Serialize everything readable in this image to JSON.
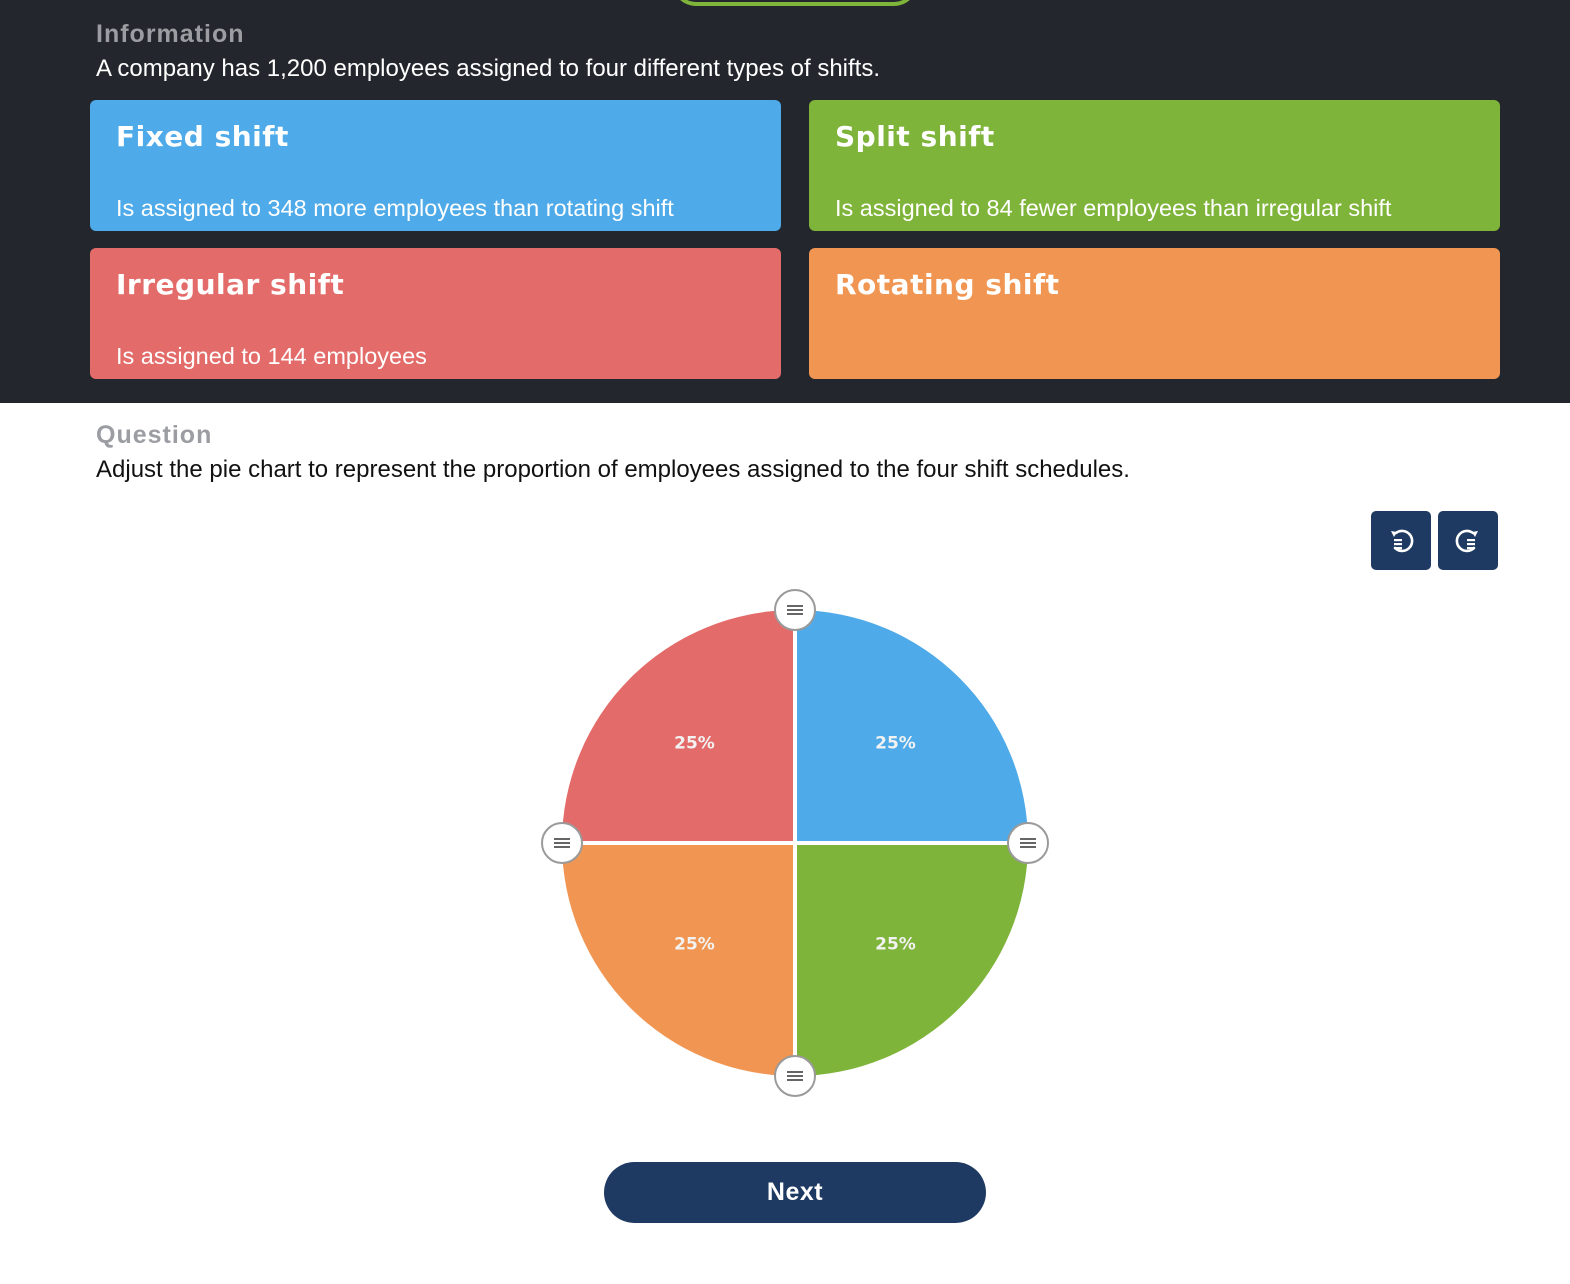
{
  "information": {
    "label": "Information",
    "text": "A company has 1,200 employees assigned to four different types of shifts."
  },
  "cards": [
    {
      "title": "Fixed shift",
      "description": "Is assigned to 348 more employees than rotating shift",
      "color": "#4eaae8"
    },
    {
      "title": "Split shift",
      "description": "Is assigned to 84 fewer employees than irregular shift",
      "color": "#7fb43a"
    },
    {
      "title": "Irregular shift",
      "description": "Is assigned to 144 employees",
      "color": "#e36c6a"
    },
    {
      "title": "Rotating shift",
      "description": "",
      "color": "#f19652"
    }
  ],
  "question": {
    "label": "Question",
    "text": "Adjust the pie chart to represent the proportion of employees assigned to the four shift schedules."
  },
  "toolbar": {
    "undo_icon": "undo-icon",
    "redo_icon": "redo-icon"
  },
  "chart_data": {
    "type": "pie",
    "categories": [
      "Fixed shift",
      "Split shift",
      "Rotating shift",
      "Irregular shift"
    ],
    "values": [
      25,
      25,
      25,
      25
    ],
    "labels": [
      "25%",
      "25%",
      "25%",
      "25%"
    ],
    "colors": [
      "#4eaae8",
      "#7fb43a",
      "#f19652",
      "#e36c6a"
    ],
    "start_angle_deg": -90,
    "order": "counterclockwise from top: Fixed shift, Irregular shift, Rotating shift, Split shift"
  },
  "next_label": "Next"
}
